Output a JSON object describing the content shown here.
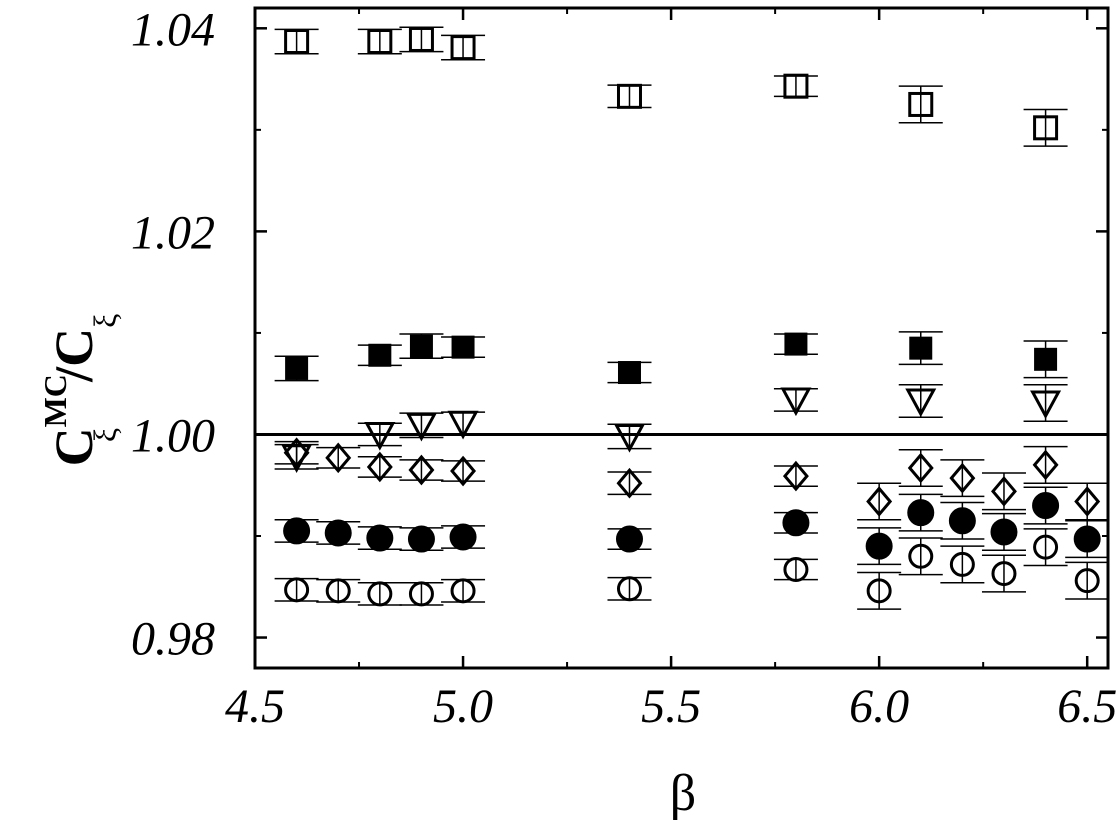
{
  "chart_data": {
    "type": "scatter",
    "xlabel": "β",
    "ylabel": {
      "main": "C",
      "sup": "MC",
      "sub": "ξ",
      "sep": "/",
      "main2": "C",
      "sub2": "ξ"
    },
    "xlim": [
      4.5,
      6.55
    ],
    "ylim": [
      0.977,
      1.042
    ],
    "x_ticks": [
      4.5,
      5.0,
      5.5,
      6.0,
      6.5
    ],
    "x_tick_labels": [
      "4.5",
      "5.0",
      "5.5",
      "6.0",
      "6.5"
    ],
    "y_ticks": [
      0.98,
      1.0,
      1.02,
      1.04
    ],
    "y_tick_labels": [
      "0.98",
      "1.00",
      "1.02",
      "1.04"
    ],
    "reference_line": 1.0,
    "grid": false,
    "series": [
      {
        "marker": "square-open",
        "points": [
          {
            "x": 4.6,
            "y": 1.0387,
            "err": 0.0012
          },
          {
            "x": 4.8,
            "y": 1.0387,
            "err": 0.0012
          },
          {
            "x": 4.9,
            "y": 1.0389,
            "err": 0.0012
          },
          {
            "x": 5.0,
            "y": 1.0381,
            "err": 0.0012
          },
          {
            "x": 5.4,
            "y": 1.0333,
            "err": 0.0011
          },
          {
            "x": 5.8,
            "y": 1.0343,
            "err": 0.001
          },
          {
            "x": 6.1,
            "y": 1.0325,
            "err": 0.0018
          },
          {
            "x": 6.4,
            "y": 1.0302,
            "err": 0.0018
          }
        ]
      },
      {
        "marker": "square-filled",
        "points": [
          {
            "x": 4.6,
            "y": 1.0065,
            "err": 0.0012
          },
          {
            "x": 4.8,
            "y": 1.0078,
            "err": 0.001
          },
          {
            "x": 4.9,
            "y": 1.0087,
            "err": 0.0012
          },
          {
            "x": 5.0,
            "y": 1.0086,
            "err": 0.001
          },
          {
            "x": 5.4,
            "y": 1.0061,
            "err": 0.001
          },
          {
            "x": 5.8,
            "y": 1.0089,
            "err": 0.001
          },
          {
            "x": 6.1,
            "y": 1.0085,
            "err": 0.0016
          },
          {
            "x": 6.4,
            "y": 1.0074,
            "err": 0.0018
          }
        ]
      },
      {
        "marker": "triangle-down-open",
        "points": [
          {
            "x": 4.6,
            "y": 0.9978,
            "err": 0.0012
          },
          {
            "x": 4.8,
            "y": 1.0,
            "err": 0.0011
          },
          {
            "x": 4.9,
            "y": 1.0009,
            "err": 0.0012
          },
          {
            "x": 5.0,
            "y": 1.0011,
            "err": 0.0011
          },
          {
            "x": 5.4,
            "y": 0.9998,
            "err": 0.0012
          },
          {
            "x": 5.8,
            "y": 1.0034,
            "err": 0.0011
          },
          {
            "x": 6.1,
            "y": 1.0033,
            "err": 0.0016
          },
          {
            "x": 6.4,
            "y": 1.0031,
            "err": 0.0018
          }
        ]
      },
      {
        "marker": "diamond-open",
        "points": [
          {
            "x": 4.6,
            "y": 0.9982,
            "err": 0.0011
          },
          {
            "x": 4.7,
            "y": 0.9977,
            "err": 0.001
          },
          {
            "x": 4.8,
            "y": 0.9968,
            "err": 0.001
          },
          {
            "x": 4.9,
            "y": 0.9965,
            "err": 0.001
          },
          {
            "x": 5.0,
            "y": 0.9964,
            "err": 0.001
          },
          {
            "x": 5.4,
            "y": 0.9952,
            "err": 0.0011
          },
          {
            "x": 5.8,
            "y": 0.9959,
            "err": 0.001
          },
          {
            "x": 6.0,
            "y": 0.9934,
            "err": 0.0018
          },
          {
            "x": 6.1,
            "y": 0.9967,
            "err": 0.0018
          },
          {
            "x": 6.2,
            "y": 0.9957,
            "err": 0.0018
          },
          {
            "x": 6.3,
            "y": 0.9944,
            "err": 0.0018
          },
          {
            "x": 6.4,
            "y": 0.997,
            "err": 0.0018
          },
          {
            "x": 6.5,
            "y": 0.9934,
            "err": 0.0018
          }
        ]
      },
      {
        "marker": "circle-filled",
        "points": [
          {
            "x": 4.6,
            "y": 0.9905,
            "err": 0.0011
          },
          {
            "x": 4.7,
            "y": 0.9903,
            "err": 0.0011
          },
          {
            "x": 4.8,
            "y": 0.9898,
            "err": 0.0011
          },
          {
            "x": 4.9,
            "y": 0.9897,
            "err": 0.0011
          },
          {
            "x": 5.0,
            "y": 0.9899,
            "err": 0.0011
          },
          {
            "x": 5.4,
            "y": 0.9897,
            "err": 0.001
          },
          {
            "x": 5.8,
            "y": 0.9913,
            "err": 0.001
          },
          {
            "x": 6.0,
            "y": 0.989,
            "err": 0.0018
          },
          {
            "x": 6.1,
            "y": 0.9923,
            "err": 0.0018
          },
          {
            "x": 6.2,
            "y": 0.9915,
            "err": 0.0018
          },
          {
            "x": 6.3,
            "y": 0.9904,
            "err": 0.0018
          },
          {
            "x": 6.4,
            "y": 0.993,
            "err": 0.0018
          },
          {
            "x": 6.5,
            "y": 0.9897,
            "err": 0.0018
          }
        ]
      },
      {
        "marker": "circle-open",
        "points": [
          {
            "x": 4.6,
            "y": 0.9847,
            "err": 0.0011
          },
          {
            "x": 4.7,
            "y": 0.9846,
            "err": 0.0011
          },
          {
            "x": 4.8,
            "y": 0.9843,
            "err": 0.0011
          },
          {
            "x": 4.9,
            "y": 0.9843,
            "err": 0.0011
          },
          {
            "x": 5.0,
            "y": 0.9846,
            "err": 0.0011
          },
          {
            "x": 5.4,
            "y": 0.9848,
            "err": 0.0011
          },
          {
            "x": 5.8,
            "y": 0.9867,
            "err": 0.001
          },
          {
            "x": 6.0,
            "y": 0.9846,
            "err": 0.0018
          },
          {
            "x": 6.1,
            "y": 0.988,
            "err": 0.0018
          },
          {
            "x": 6.2,
            "y": 0.9872,
            "err": 0.0018
          },
          {
            "x": 6.3,
            "y": 0.9863,
            "err": 0.0018
          },
          {
            "x": 6.4,
            "y": 0.9889,
            "err": 0.0018
          },
          {
            "x": 6.5,
            "y": 0.9856,
            "err": 0.0018
          }
        ]
      }
    ]
  }
}
